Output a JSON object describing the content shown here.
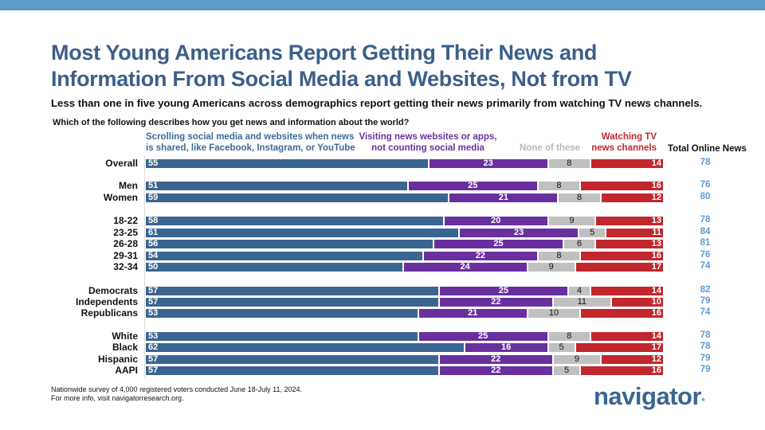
{
  "header": {
    "title_line1": "Most Young Americans Report Getting Their News and",
    "title_line2": "Information From Social Media and Websites, Not from TV",
    "subtitle": "Less than one in five young Americans across demographics report getting their news primarily from watching TV news channels.",
    "question": "Which of the following describes how you get news and information about the world?"
  },
  "chart_data": {
    "type": "bar",
    "orientation": "horizontal",
    "stacked": true,
    "categories": [
      "Overall",
      "Men",
      "Women",
      "18-22",
      "23-25",
      "26-28",
      "29-31",
      "32-34",
      "Democrats",
      "Independents",
      "Republicans",
      "White",
      "Black",
      "Hispanic",
      "AAPI"
    ],
    "series": [
      {
        "name": "Scrolling social media and websites when news is shared, like Facebook, Instagram, or YouTube",
        "line1": "Scrolling social media and websites when news",
        "line2": "is shared, like Facebook, Instagram, or YouTube",
        "color": "#3b6591",
        "values": [
          55,
          51,
          59,
          58,
          61,
          56,
          54,
          50,
          57,
          57,
          53,
          53,
          62,
          57,
          57
        ]
      },
      {
        "name": "Visiting news websites or apps, not counting social media",
        "line1": "Visiting news websites or apps,",
        "line2": "not counting social media",
        "color": "#6a2f9e",
        "values": [
          23,
          25,
          21,
          20,
          23,
          25,
          22,
          24,
          25,
          22,
          21,
          25,
          16,
          22,
          22
        ]
      },
      {
        "name": "None of these",
        "line1": "None of these",
        "color": "#c0c0c0",
        "values": [
          8,
          8,
          8,
          9,
          5,
          6,
          8,
          9,
          4,
          11,
          10,
          8,
          5,
          9,
          5
        ]
      },
      {
        "name": "Watching TV news channels",
        "line1": "Watching TV",
        "line2": "news channels",
        "color": "#c1272d",
        "values": [
          14,
          16,
          12,
          13,
          11,
          13,
          16,
          17,
          14,
          10,
          16,
          14,
          17,
          12,
          16
        ]
      }
    ],
    "total_column": {
      "label": "Total Online News",
      "color": "#5b9bd5",
      "values": [
        78,
        76,
        80,
        78,
        84,
        81,
        76,
        74,
        82,
        79,
        74,
        78,
        78,
        79,
        79
      ]
    }
  },
  "footer": {
    "note1": "Nationwide survey of 4,000 registered voters conducted June 18-July 11, 2024.",
    "note2": "For more info, visit navigatorresearch.org."
  },
  "logo": {
    "text": "navigator",
    "mark": "*"
  }
}
